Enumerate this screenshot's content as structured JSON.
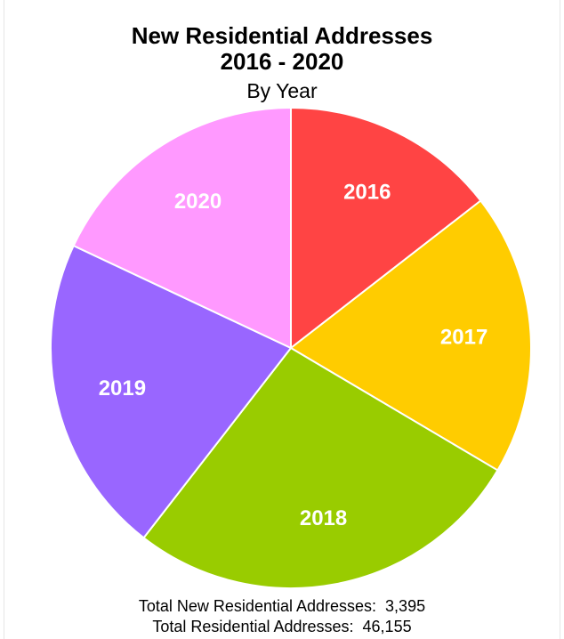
{
  "chart_data": {
    "type": "pie",
    "title_line1": "New Residential Addresses",
    "title_line2": "2016 - 2020",
    "subtitle": "By Year",
    "categories": [
      "2016",
      "2017",
      "2018",
      "2019",
      "2020"
    ],
    "values": [
      14.5,
      19.0,
      27.0,
      21.5,
      18.0
    ],
    "colors": [
      "#ff4444",
      "#ffcc00",
      "#99cc00",
      "#9966ff",
      "#ff99ff"
    ],
    "slice_edge_color": "#ffffff"
  },
  "footer": {
    "total_new_label": "Total New Residential Addresses:",
    "total_new_value": "3,395",
    "total_label": "Total Residential Addresses:",
    "total_value": "46,155"
  }
}
